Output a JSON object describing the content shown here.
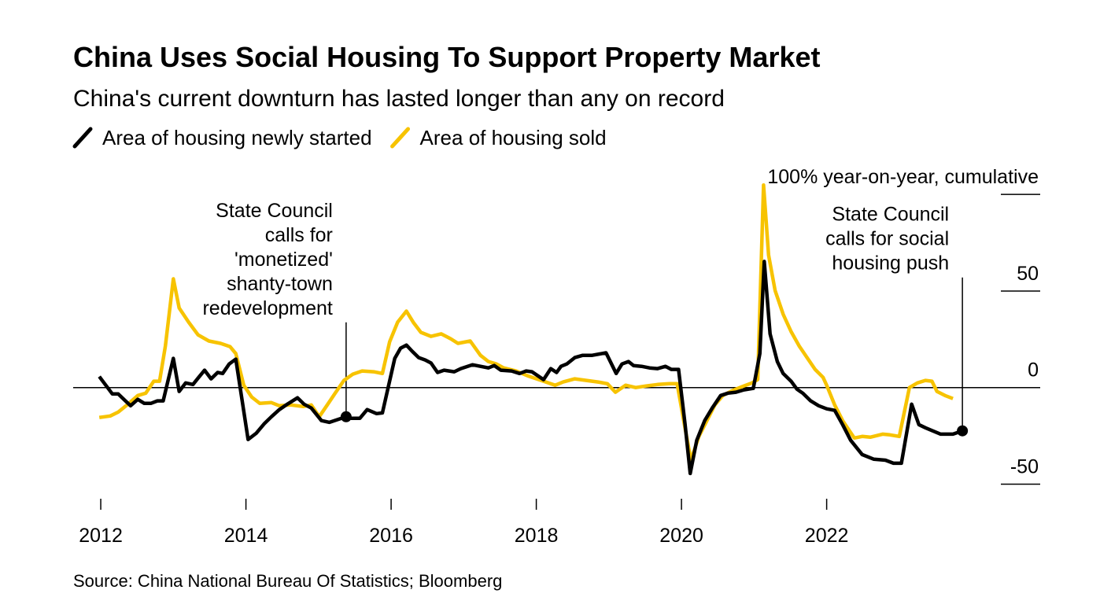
{
  "chart_data": {
    "type": "line",
    "title": "China Uses Social Housing To Support Property Market",
    "subtitle": "China's current downturn has lasted longer than any on record",
    "source": "Source: China National Bureau Of Statistics; Bloomberg",
    "xlim": [
      2011.62,
      2024.92
    ],
    "xticks": [
      2012,
      2014,
      2016,
      2018,
      2020,
      2022
    ],
    "ylim": [
      -60,
      107
    ],
    "yticks": [
      -50,
      0,
      50,
      {
        "value": 100,
        "label": "100% year-on-year, cumulative"
      }
    ],
    "series": [
      {
        "name": "Area of housing newly started",
        "color": "#000000",
        "x": [
          2011.98,
          2012.16,
          2012.24,
          2012.41,
          2012.51,
          2012.6,
          2012.69,
          2012.78,
          2012.86,
          2013.0,
          2013.08,
          2013.17,
          2013.27,
          2013.34,
          2013.43,
          2013.52,
          2013.61,
          2013.68,
          2013.77,
          2013.86,
          2014.03,
          2014.14,
          2014.25,
          2014.35,
          2014.46,
          2014.57,
          2014.71,
          2014.8,
          2014.9,
          2015.04,
          2015.15,
          2015.38,
          2015.45,
          2015.57,
          2015.67,
          2015.8,
          2015.88,
          2016.05,
          2016.13,
          2016.21,
          2016.29,
          2016.38,
          2016.47,
          2016.55,
          2016.64,
          2016.73,
          2016.87,
          2016.96,
          2017.12,
          2017.23,
          2017.34,
          2017.42,
          2017.51,
          2017.66,
          2017.77,
          2017.86,
          2017.94,
          2018.1,
          2018.2,
          2018.28,
          2018.34,
          2018.42,
          2018.53,
          2018.64,
          2018.77,
          2018.96,
          2019.1,
          2019.18,
          2019.27,
          2019.34,
          2019.45,
          2019.56,
          2019.67,
          2019.78,
          2019.86,
          2019.96,
          2020.05,
          2020.12,
          2020.21,
          2020.32,
          2020.43,
          2020.54,
          2020.64,
          2020.75,
          2020.86,
          2020.99,
          2021.08,
          2021.14,
          2021.22,
          2021.32,
          2021.4,
          2021.51,
          2021.59,
          2021.67,
          2021.78,
          2021.89,
          2022.0,
          2022.11,
          2022.22,
          2022.33,
          2022.49,
          2022.65,
          2022.81,
          2022.92,
          2023.03,
          2023.17,
          2023.27,
          2023.36,
          2023.46,
          2023.57,
          2023.74,
          2023.87
        ],
        "values": [
          5.7,
          -3.3,
          -3.3,
          -9.4,
          -6.1,
          -8.2,
          -8.2,
          -6.9,
          -6.9,
          15.1,
          -2.0,
          2.4,
          1.6,
          4.9,
          9.0,
          4.5,
          7.8,
          7.3,
          12.2,
          14.7,
          -26.9,
          -23.7,
          -18.8,
          -15.1,
          -11.4,
          -8.6,
          -5.3,
          -8.6,
          -10.6,
          -17.1,
          -18.0,
          -15.1,
          -15.9,
          -15.9,
          -11.4,
          -13.5,
          -13.1,
          15.1,
          20.4,
          22.0,
          18.8,
          15.5,
          14.3,
          12.7,
          7.8,
          9.0,
          8.2,
          9.8,
          11.8,
          11.0,
          10.2,
          11.4,
          9.0,
          8.6,
          7.3,
          8.6,
          8.2,
          4.1,
          9.8,
          7.8,
          11.0,
          12.2,
          15.5,
          16.7,
          16.7,
          18.0,
          7.3,
          12.2,
          13.5,
          11.4,
          11.0,
          10.2,
          9.8,
          11.0,
          9.4,
          9.4,
          -19.2,
          -44.5,
          -27.3,
          -17.1,
          -10.2,
          -4.1,
          -2.9,
          -2.4,
          -1.2,
          -0.4,
          17.6,
          65.3,
          27.8,
          13.5,
          7.3,
          3.3,
          -0.8,
          -2.9,
          -6.9,
          -9.4,
          -11.0,
          -11.8,
          -19.2,
          -27.3,
          -34.7,
          -37.1,
          -37.6,
          -39.2,
          -39.2,
          -8.6,
          -19.2,
          -20.8,
          -22.4,
          -24.1,
          -24.1,
          -22.4
        ]
      },
      {
        "name": "Area of housing sold",
        "color": "#f7c300",
        "x": [
          2011.98,
          2012.13,
          2012.24,
          2012.35,
          2012.51,
          2012.62,
          2012.73,
          2012.81,
          2012.89,
          2013.0,
          2013.08,
          2013.21,
          2013.34,
          2013.49,
          2013.65,
          2013.78,
          2013.86,
          2013.97,
          2014.08,
          2014.19,
          2014.35,
          2014.46,
          2014.62,
          2014.79,
          2014.9,
          2015.01,
          2015.12,
          2015.23,
          2015.35,
          2015.47,
          2015.6,
          2015.76,
          2015.88,
          2015.98,
          2016.09,
          2016.21,
          2016.31,
          2016.41,
          2016.55,
          2016.69,
          2016.82,
          2016.92,
          2017.09,
          2017.23,
          2017.34,
          2017.45,
          2017.55,
          2017.72,
          2017.88,
          2018.1,
          2018.26,
          2018.37,
          2018.53,
          2018.69,
          2018.85,
          2018.98,
          2019.09,
          2019.23,
          2019.37,
          2019.51,
          2019.67,
          2019.83,
          2019.94,
          2020.05,
          2020.13,
          2020.24,
          2020.35,
          2020.46,
          2020.57,
          2020.7,
          2020.83,
          2020.97,
          2021.05,
          2021.13,
          2021.2,
          2021.29,
          2021.4,
          2021.51,
          2021.62,
          2021.73,
          2021.84,
          2021.95,
          2022.0,
          2022.11,
          2022.22,
          2022.38,
          2022.49,
          2022.6,
          2022.77,
          2022.87,
          2023.0,
          2023.14,
          2023.25,
          2023.36,
          2023.45,
          2023.52,
          2023.63,
          2023.74
        ],
        "values": [
          -15.5,
          -14.7,
          -12.7,
          -9.4,
          -4.1,
          -2.9,
          3.3,
          3.3,
          21.6,
          56.3,
          41.2,
          33.9,
          27.3,
          24.1,
          22.9,
          21.2,
          17.6,
          1.2,
          -4.9,
          -8.2,
          -7.8,
          -9.4,
          -9.0,
          -9.8,
          -9.0,
          -15.1,
          -9.0,
          -2.9,
          3.7,
          6.9,
          8.6,
          8.2,
          7.3,
          23.7,
          33.9,
          39.6,
          33.5,
          28.6,
          26.5,
          27.8,
          25.3,
          22.9,
          24.1,
          16.7,
          13.5,
          12.2,
          10.2,
          8.6,
          6.1,
          3.3,
          1.2,
          2.9,
          4.5,
          3.7,
          2.9,
          2.0,
          -2.4,
          1.2,
          0,
          0.8,
          1.6,
          2.0,
          2.0,
          -21.2,
          -37.6,
          -25.3,
          -17.1,
          -9.0,
          -4.1,
          -1.6,
          0.4,
          2.4,
          4.1,
          104.9,
          68.6,
          50.2,
          38.0,
          29.0,
          21.6,
          15.5,
          9.4,
          5.3,
          1.2,
          -9.0,
          -17.1,
          -26.1,
          -25.3,
          -25.7,
          -24.1,
          -24.5,
          -25.3,
          0,
          2.4,
          3.7,
          3.3,
          -2.0,
          -4.1,
          -5.7
        ]
      }
    ],
    "annotations": [
      {
        "lines": [
          "State Council",
          "calls for",
          "'monetized'",
          "shanty-town",
          "redevelopment"
        ],
        "x": 2015.38,
        "y": -15.1
      },
      {
        "lines": [
          "State Council",
          "calls for social",
          "housing push"
        ],
        "x": 2023.87,
        "y": -22.4
      }
    ]
  }
}
